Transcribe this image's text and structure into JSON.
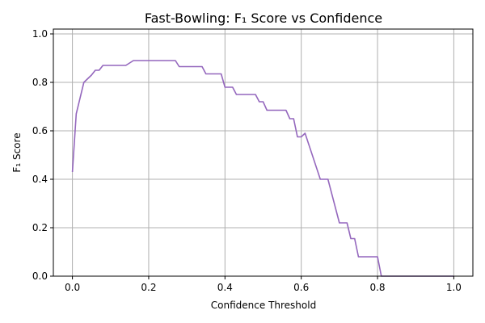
{
  "chart_data": {
    "type": "line",
    "title": "Fast-Bowling: F₁ Score vs Confidence",
    "xlabel": "Confidence Threshold",
    "ylabel": "F₁ Score",
    "xlim": [
      -0.05,
      1.05
    ],
    "ylim": [
      0.0,
      1.02
    ],
    "grid": true,
    "x_ticks": [
      0.0,
      0.2,
      0.4,
      0.6,
      0.8,
      1.0
    ],
    "x_tick_labels": [
      "0.0",
      "0.2",
      "0.4",
      "0.6",
      "0.8",
      "1.0"
    ],
    "y_ticks": [
      0.0,
      0.2,
      0.4,
      0.6,
      0.8,
      1.0
    ],
    "y_tick_labels": [
      "0.0",
      "0.2",
      "0.4",
      "0.6",
      "0.8",
      "1.0"
    ],
    "series": [
      {
        "color": "#9467bd",
        "x": [
          0.0,
          0.01,
          0.03,
          0.04,
          0.05,
          0.06,
          0.07,
          0.08,
          0.14,
          0.15,
          0.16,
          0.27,
          0.28,
          0.34,
          0.35,
          0.39,
          0.4,
          0.42,
          0.43,
          0.48,
          0.49,
          0.5,
          0.51,
          0.56,
          0.57,
          0.58,
          0.59,
          0.6,
          0.61,
          0.65,
          0.67,
          0.7,
          0.72,
          0.73,
          0.74,
          0.75,
          0.8,
          0.81,
          1.0
        ],
        "y": [
          0.43,
          0.67,
          0.8,
          0.815,
          0.83,
          0.85,
          0.85,
          0.87,
          0.87,
          0.88,
          0.89,
          0.89,
          0.865,
          0.865,
          0.835,
          0.835,
          0.78,
          0.78,
          0.75,
          0.75,
          0.72,
          0.72,
          0.685,
          0.685,
          0.65,
          0.65,
          0.575,
          0.575,
          0.59,
          0.4,
          0.4,
          0.22,
          0.22,
          0.155,
          0.155,
          0.08,
          0.08,
          0.0,
          0.0
        ]
      }
    ]
  }
}
